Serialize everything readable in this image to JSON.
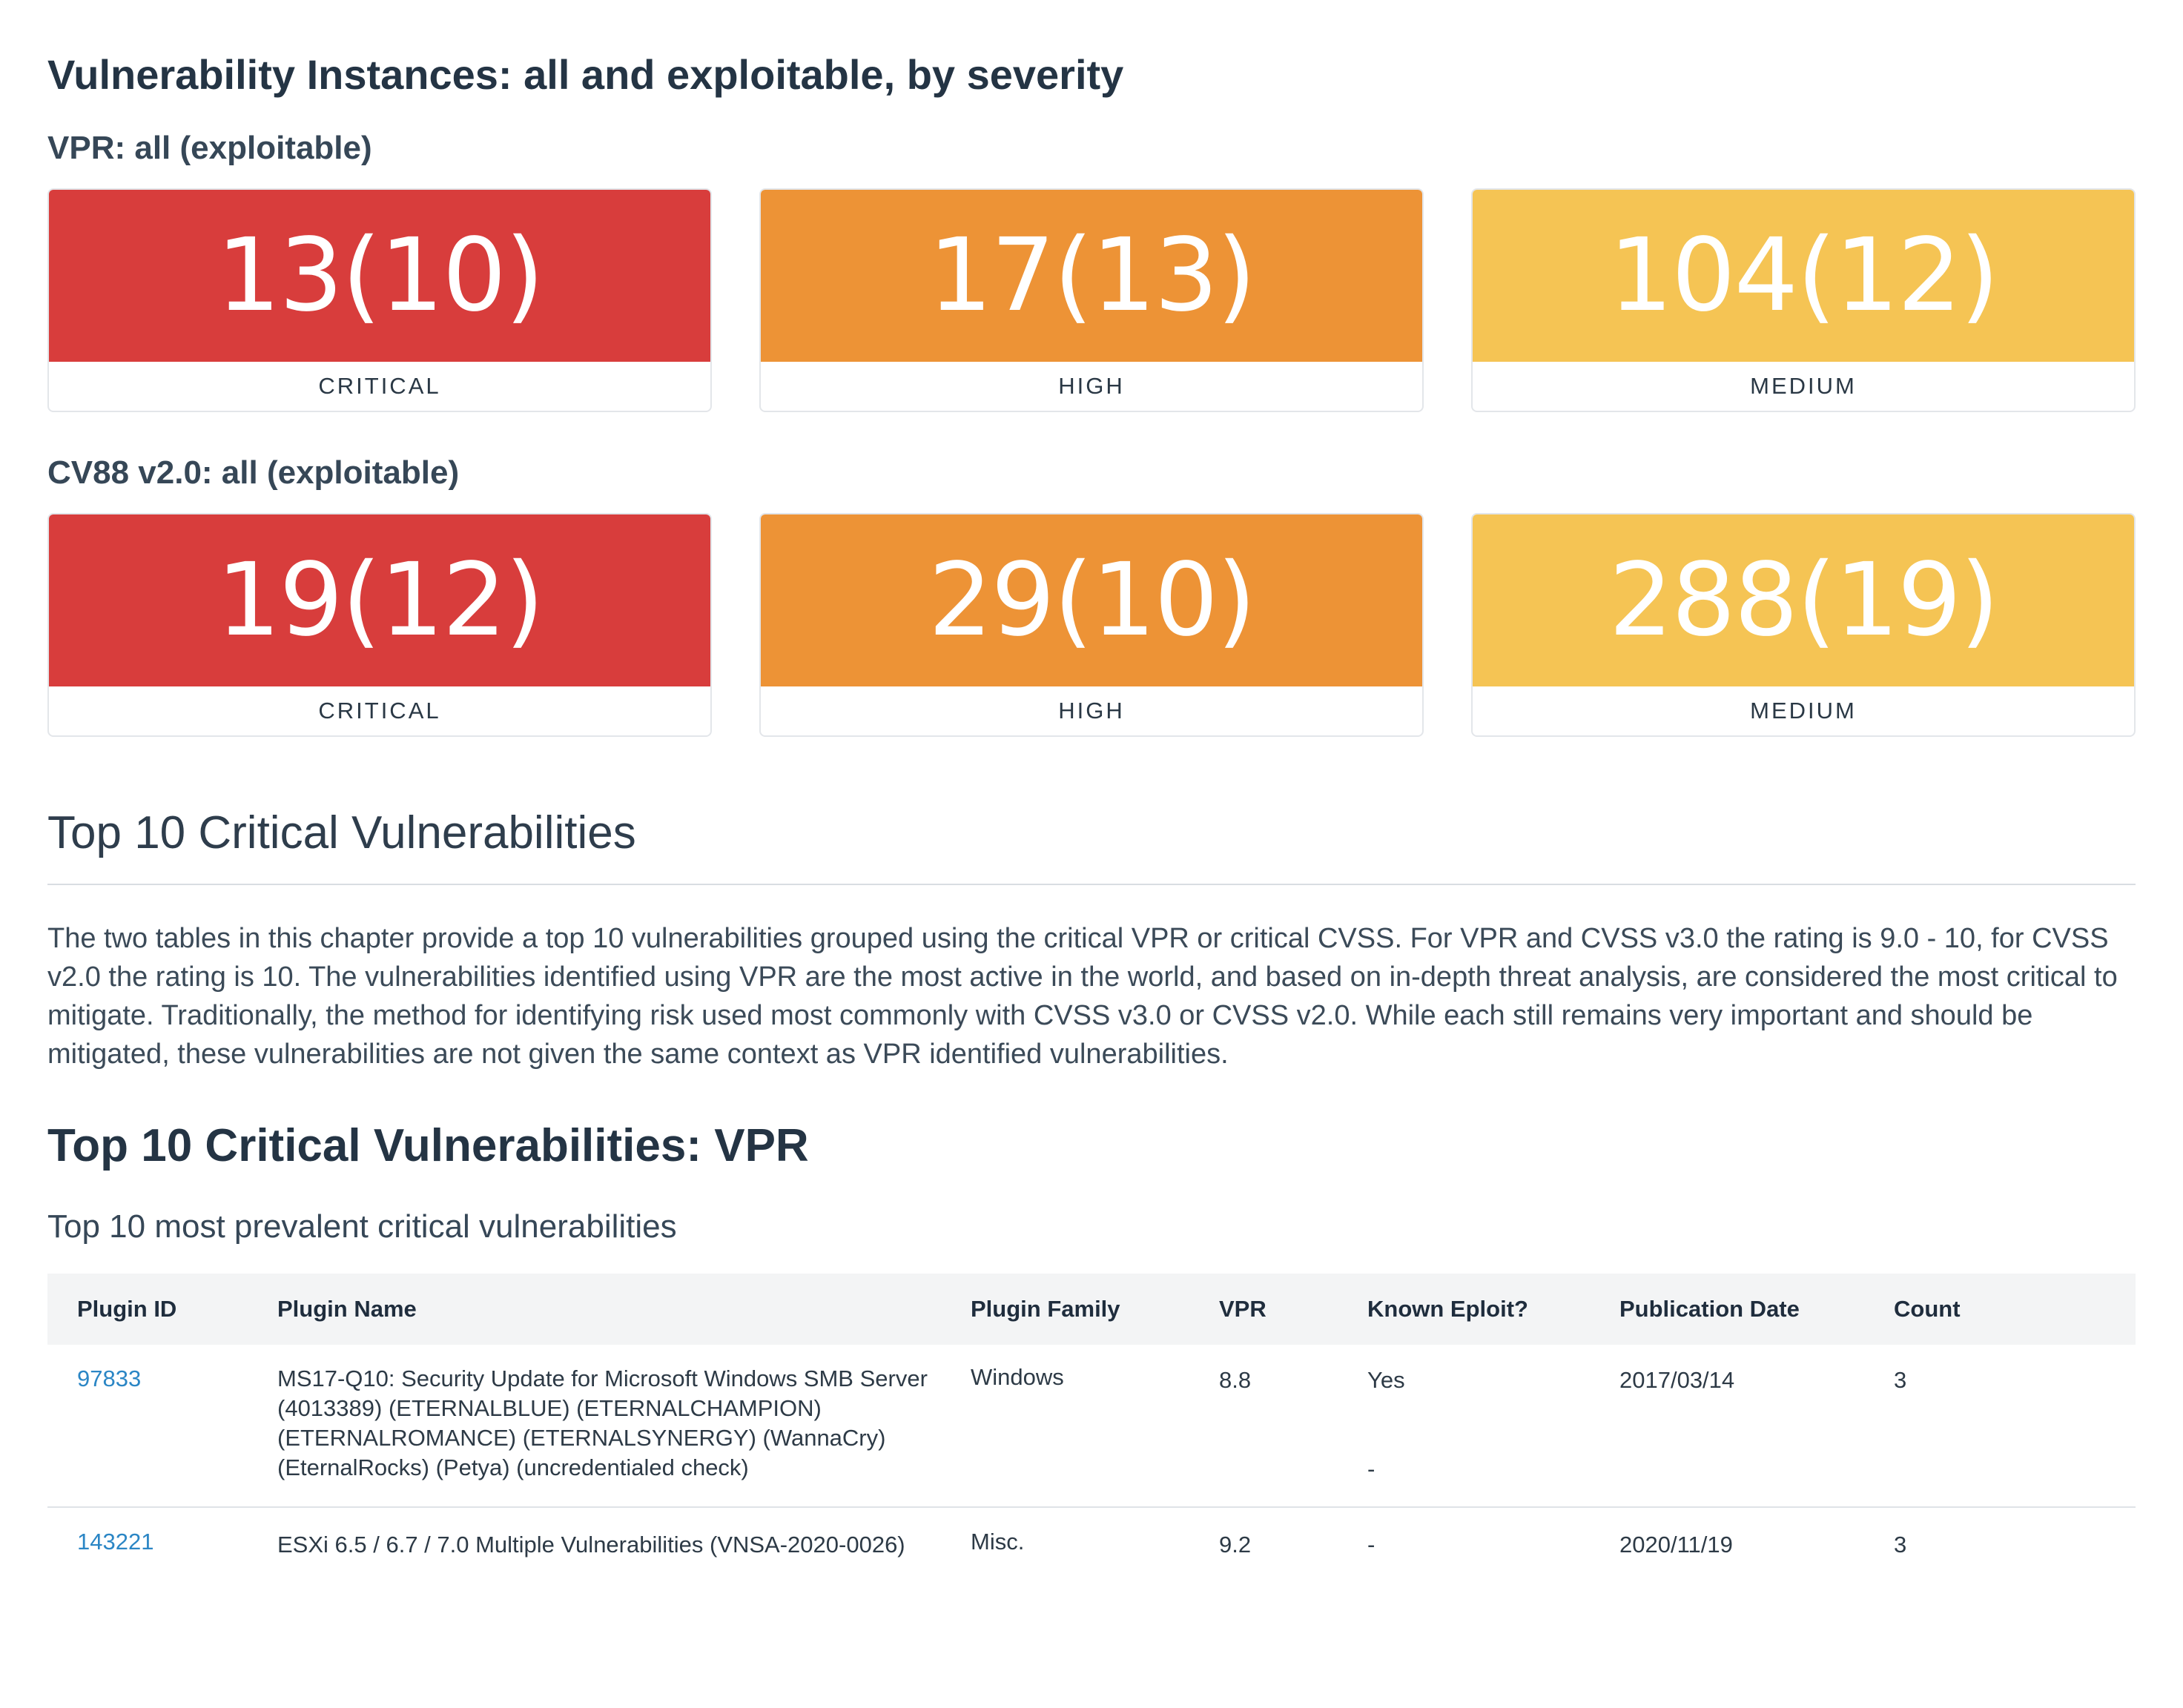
{
  "title": "Vulnerability Instances: all and exploitable, by severity",
  "vpr": {
    "heading": "VPR: all (exploitable)",
    "cards": [
      {
        "value": "13(10)",
        "label": "CRITICAL",
        "color": "#d83d3c"
      },
      {
        "value": "17(13)",
        "label": "HIGH",
        "color": "#ed9336"
      },
      {
        "value": "104(12)",
        "label": "MEDIUM",
        "color": "#f5c454"
      }
    ]
  },
  "cvss": {
    "heading": "CV88 v2.0: all (exploitable)",
    "cards": [
      {
        "value": "19(12)",
        "label": "CRITICAL",
        "color": "#d83d3c"
      },
      {
        "value": "29(10)",
        "label": "HIGH",
        "color": "#ed9336"
      },
      {
        "value": "288(19)",
        "label": "MEDIUM",
        "color": "#f5c454"
      }
    ]
  },
  "section": {
    "title": "Top 10 Critical Vulnerabilities",
    "paragraph": "The two tables in this chapter provide a top 10 vulnerabilities grouped using the critical VPR or critical CVSS. For VPR and CVSS v3.0 the rating is 9.0 - 10, for CVSS v2.0 the rating is 10. The vulnerabilities identified using VPR are the most active in the world, and based on in-depth threat analysis, are considered the most critical to mitigate. Traditionally, the method for identifying risk used most commonly with CVSS v3.0 or CVSS v2.0. While each still remains very important and should be mitigated, these vulnerabilities are not given the same context as VPR identified vulnerabilities."
  },
  "table": {
    "title": "Top 10 Critical Vulnerabilities: VPR",
    "subtitle": "Top 10 most prevalent critical vulnerabilities",
    "headers": {
      "plugin_id": "Plugin ID",
      "plugin_name": "Plugin Name",
      "plugin_family": "Plugin Family",
      "vpr": "VPR",
      "known_exploit": "Known Eploit?",
      "publication_date": "Publication Date",
      "count": "Count"
    },
    "rows": [
      {
        "plugin_id": "97833",
        "plugin_name": "MS17-Q10: Security Update for Microsoft Windows SMB Server (4013389) (ETERNALBLUE) (ETERNALCHAMPION) (ETERNALROMANCE) (ETERNALSYNERGY) (WannaCry) (EternalRocks) (Petya) (uncredentialed check)",
        "plugin_family": "Windows",
        "vpr": "8.8",
        "known_exploit": "Yes",
        "known_exploit_extra": "-",
        "publication_date": "2017/03/14",
        "count": "3"
      },
      {
        "plugin_id": "143221",
        "plugin_name": "ESXi 6.5 / 6.7 / 7.0 Multiple Vulnerabilities (VNSA-2020-0026)",
        "plugin_family": "Misc.",
        "vpr": "9.2",
        "known_exploit": "-",
        "publication_date": "2020/11/19",
        "count": "3"
      }
    ]
  }
}
